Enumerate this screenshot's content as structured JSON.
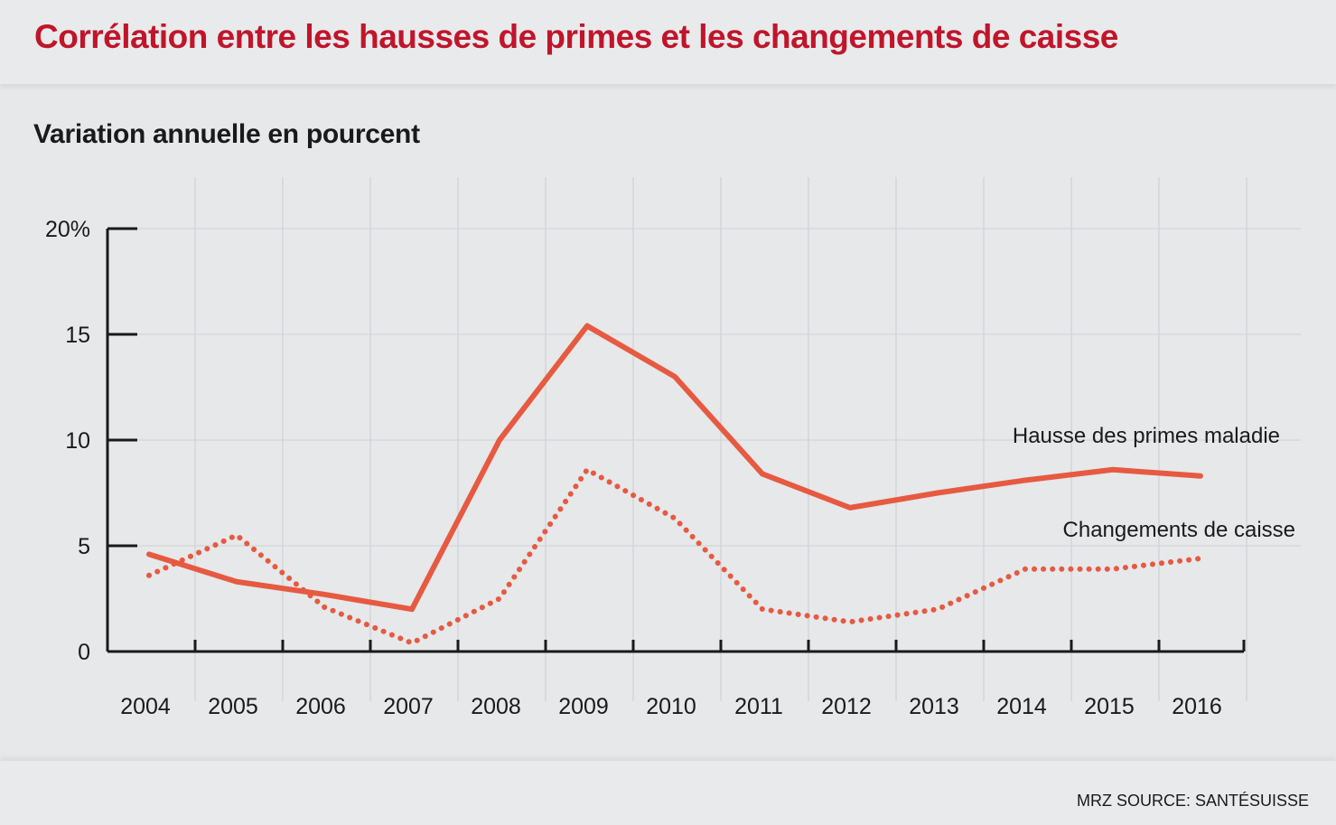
{
  "header": {
    "title": "Corrélation entre les hausses de primes et les changements de caisse"
  },
  "subtitle": "Variation annuelle en pourcent",
  "footer": {
    "source": "MRZ SOURCE: SANTÉSUISSE"
  },
  "colors": {
    "title": "#c0152b",
    "series": "#e65a41",
    "axis": "#1a1a1a",
    "grid": "#cfd2d5",
    "background": "#e6e8ea"
  },
  "chart_data": {
    "type": "line",
    "title": "Corrélation entre les hausses de primes et les changements de caisse",
    "ylabel": "Variation annuelle en pourcent",
    "xlabel": "",
    "categories": [
      "2004",
      "2005",
      "2006",
      "2007",
      "2008",
      "2009",
      "2010",
      "2011",
      "2012",
      "2013",
      "2014",
      "2015",
      "2016"
    ],
    "y_ticks": [
      0,
      5,
      10,
      15,
      20
    ],
    "y_tick_labels": [
      "0",
      "5",
      "10",
      "15",
      "20%"
    ],
    "ylim": [
      0,
      20
    ],
    "grid": "vertical",
    "series": [
      {
        "name": "Hausse des primes maladie",
        "style": "solid",
        "values": [
          4.6,
          3.3,
          2.7,
          2.0,
          10.0,
          15.4,
          13.0,
          8.4,
          6.8,
          7.5,
          8.1,
          8.6,
          8.3
        ]
      },
      {
        "name": "Changements de caisse",
        "style": "dotted",
        "values": [
          3.6,
          5.5,
          2.1,
          0.4,
          2.5,
          8.6,
          6.3,
          2.0,
          1.4,
          2.0,
          3.9,
          3.9,
          4.4
        ]
      }
    ]
  }
}
